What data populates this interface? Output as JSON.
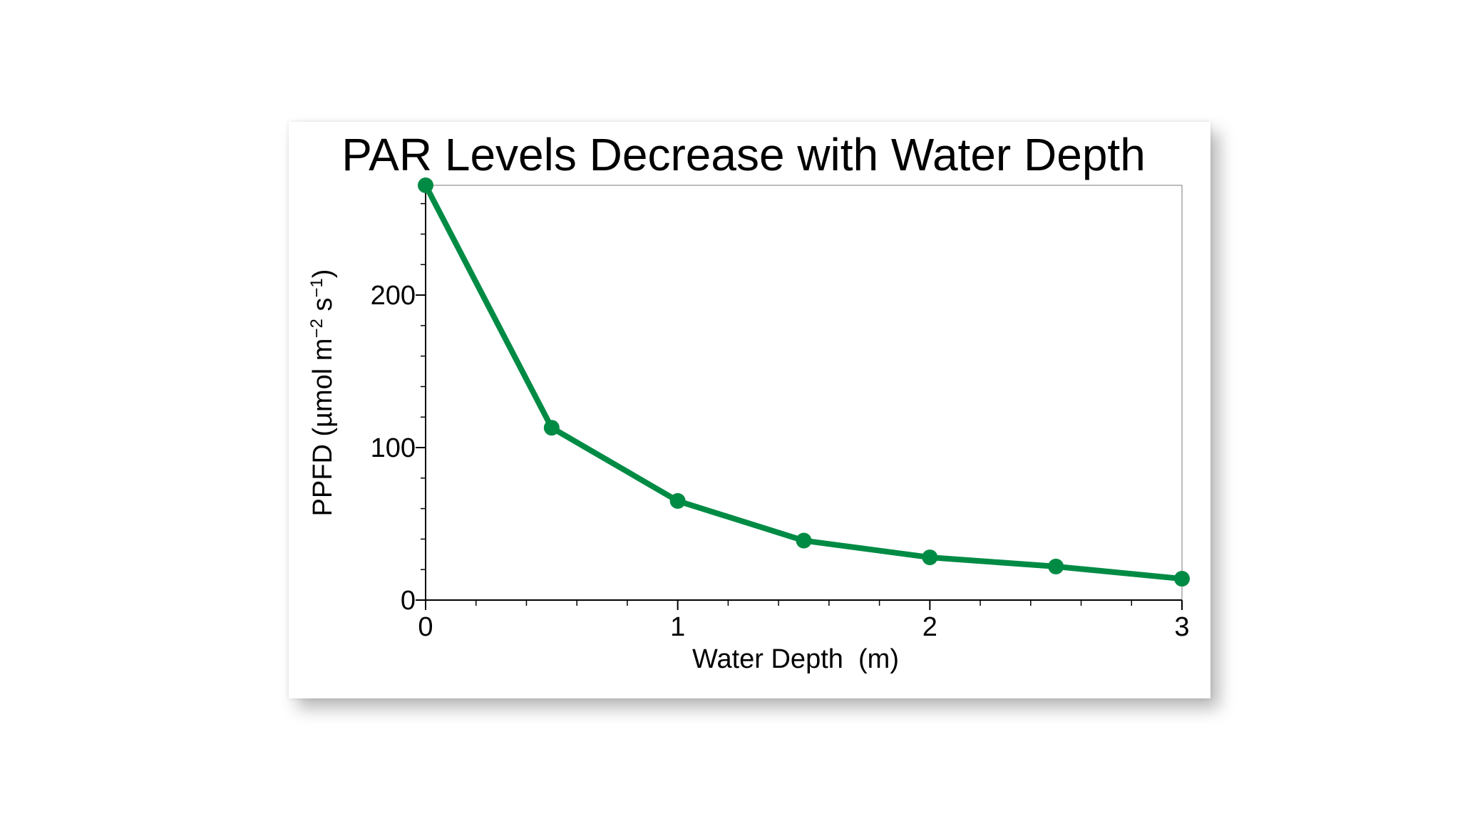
{
  "colors": {
    "series": "#008B45",
    "axis": "#000000",
    "frame": "#a6a6a6",
    "background": "#ffffff"
  },
  "chart_data": {
    "type": "line",
    "title": "PAR Levels Decrease with Water Depth",
    "xlabel": "Water Depth  (m)",
    "ylabel_main": "PPFD (µmol m",
    "ylabel_sup1": "−2",
    "ylabel_mid": " s",
    "ylabel_sup2": "−1",
    "ylabel_end": ")",
    "xlim": [
      0,
      3
    ],
    "ylim": [
      0,
      272
    ],
    "x_ticks": [
      0,
      1,
      2,
      3
    ],
    "y_ticks": [
      0,
      100,
      200
    ],
    "x_minor_step": 0.2,
    "y_minor_step": 20,
    "grid": false,
    "series": [
      {
        "x": [
          0,
          0.5,
          1.0,
          1.5,
          2.0,
          2.5,
          3.0
        ],
        "y": [
          272,
          113,
          65,
          39,
          28,
          22,
          14
        ],
        "color": "#008B45",
        "marker": "circle"
      }
    ]
  }
}
